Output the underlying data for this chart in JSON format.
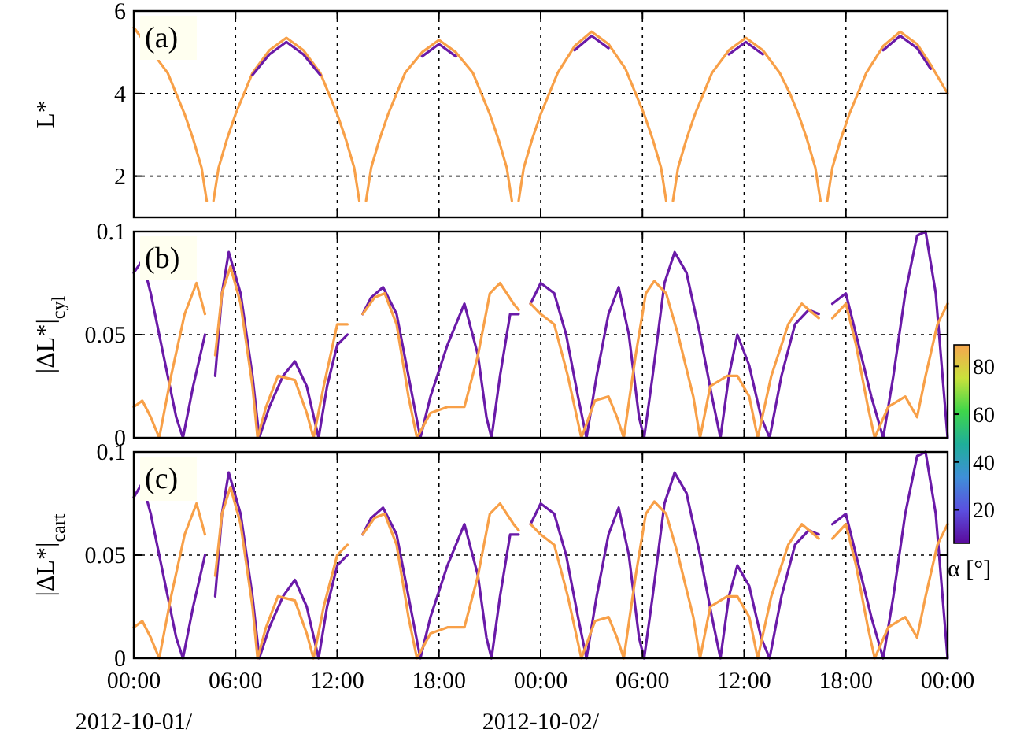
{
  "chart_data": [
    {
      "type": "line",
      "title": "(a)",
      "ylabel": "L*",
      "xlim": [
        "2012-10-01T00:00",
        "2012-10-03T00:00"
      ],
      "ylim": [
        1,
        6
      ],
      "yticks": [
        2,
        4,
        6
      ],
      "xticks": [
        {
          "value": "2012-10-01T00:00",
          "label": null
        },
        {
          "value": "2012-10-01T06:00",
          "label": null
        },
        {
          "value": "2012-10-01T12:00",
          "label": null
        },
        {
          "value": "2012-10-01T18:00",
          "label": null
        },
        {
          "value": "2012-10-02T00:00",
          "label": null
        },
        {
          "value": "2012-10-02T06:00",
          "label": null
        },
        {
          "value": "2012-10-02T12:00",
          "label": null
        },
        {
          "value": "2012-10-02T18:00",
          "label": null
        },
        {
          "value": "2012-10-03T00:00",
          "label": null
        }
      ],
      "grid": true,
      "tick_labels": "y",
      "series": [
        {
          "color": "#f8a048",
          "x": [
            "2012-10-01T00:00",
            "2012-10-01T02:00",
            "2012-10-01T02:30",
            "2012-10-01T03:00",
            "2012-10-01T03:30",
            "2012-10-01T04:00",
            "2012-10-01T04:18",
            "2012-10-01T04:30",
            "2012-10-01T04:42",
            "2012-10-01T05:00",
            "2012-10-01T05:30",
            "2012-10-01T06:00",
            "2012-10-01T06:30",
            "2012-10-01T07:00",
            "2012-10-01T08:00",
            "2012-10-01T09:00",
            "2012-10-01T10:00",
            "2012-10-01T11:00",
            "2012-10-01T11:30",
            "2012-10-01T12:00",
            "2012-10-01T12:30",
            "2012-10-01T13:00",
            "2012-10-01T13:18",
            "2012-10-01T13:30",
            "2012-10-01T13:42",
            "2012-10-01T14:00",
            "2012-10-01T14:30",
            "2012-10-01T15:00",
            "2012-10-01T15:30",
            "2012-10-01T16:00",
            "2012-10-01T17:00",
            "2012-10-01T18:00",
            "2012-10-01T19:00",
            "2012-10-01T20:00",
            "2012-10-01T20:30",
            "2012-10-01T21:00",
            "2012-10-01T21:30",
            "2012-10-01T22:00",
            "2012-10-01T22:18",
            "2012-10-01T22:30",
            "2012-10-01T22:42",
            "2012-10-01T23:00",
            "2012-10-01T23:30",
            "2012-10-02T00:00",
            "2012-10-02T00:30",
            "2012-10-02T01:00",
            "2012-10-02T02:00",
            "2012-10-02T03:00",
            "2012-10-02T04:00",
            "2012-10-02T05:00",
            "2012-10-02T05:36",
            "2012-10-02T06:06",
            "2012-10-02T06:36",
            "2012-10-02T07:06",
            "2012-10-02T07:24",
            "2012-10-02T07:36",
            "2012-10-02T07:48",
            "2012-10-02T08:06",
            "2012-10-02T08:36",
            "2012-10-02T09:06",
            "2012-10-02T09:36",
            "2012-10-02T10:06",
            "2012-10-02T11:06",
            "2012-10-02T12:06",
            "2012-10-02T13:06",
            "2012-10-02T14:06",
            "2012-10-02T14:42",
            "2012-10-02T15:12",
            "2012-10-02T15:42",
            "2012-10-02T16:12",
            "2012-10-02T16:30",
            "2012-10-02T16:42",
            "2012-10-02T16:54",
            "2012-10-02T17:12",
            "2012-10-02T17:42",
            "2012-10-02T18:12",
            "2012-10-02T18:42",
            "2012-10-02T19:12",
            "2012-10-02T20:12",
            "2012-10-02T21:12",
            "2012-10-02T22:12",
            "2012-10-02T23:00",
            "2012-10-03T00:00"
          ],
          "values": [
            5.6,
            4.5,
            4.0,
            3.5,
            2.9,
            2.2,
            1.4,
            null,
            1.4,
            2.2,
            2.9,
            3.5,
            4.0,
            4.5,
            5.05,
            5.35,
            5.05,
            4.5,
            4.0,
            3.5,
            2.9,
            2.2,
            1.4,
            null,
            1.4,
            2.2,
            2.9,
            3.5,
            4.0,
            4.5,
            5.0,
            5.3,
            5.0,
            4.5,
            4.0,
            3.5,
            2.9,
            2.2,
            1.4,
            null,
            1.4,
            2.2,
            2.9,
            3.5,
            4.0,
            4.5,
            5.15,
            5.5,
            5.2,
            4.6,
            4.0,
            3.5,
            2.9,
            2.2,
            1.4,
            null,
            1.4,
            2.2,
            2.9,
            3.5,
            4.0,
            4.5,
            5.05,
            5.35,
            5.05,
            4.5,
            4.0,
            3.5,
            2.9,
            2.2,
            1.4,
            null,
            1.4,
            2.2,
            2.9,
            3.5,
            4.0,
            4.5,
            5.15,
            5.5,
            5.2,
            4.7,
            4.0
          ]
        },
        {
          "color": "#6a1aa8",
          "x": [
            "2012-10-01T07:00",
            "2012-10-01T08:00",
            "2012-10-01T09:00",
            "2012-10-01T10:00",
            "2012-10-01T11:00",
            "2012-10-01T16:00",
            "2012-10-01T17:00",
            "2012-10-01T18:00",
            "2012-10-01T19:00",
            "2012-10-01T20:00",
            "2012-10-02T01:00",
            "2012-10-02T02:00",
            "2012-10-02T03:00",
            "2012-10-02T04:00",
            "2012-10-02T05:00",
            "2012-10-02T10:06",
            "2012-10-02T11:06",
            "2012-10-02T12:06",
            "2012-10-02T13:06",
            "2012-10-02T14:06",
            "2012-10-02T19:12",
            "2012-10-02T20:12",
            "2012-10-02T21:12",
            "2012-10-02T22:12",
            "2012-10-02T23:00"
          ],
          "values": [
            4.45,
            4.95,
            5.25,
            4.95,
            4.45,
            null,
            4.9,
            5.2,
            4.9,
            null,
            null,
            5.05,
            5.4,
            5.1,
            null,
            null,
            4.95,
            5.25,
            4.95,
            null,
            null,
            5.05,
            5.4,
            5.1,
            4.6
          ]
        }
      ]
    },
    {
      "type": "line",
      "title": "(b)",
      "ylabel": "|ΔL*|$_{cyl}$",
      "xlim": [
        "2012-10-01T00:00",
        "2012-10-03T00:00"
      ],
      "ylim": [
        0,
        0.1
      ],
      "yticks": [
        0,
        0.05,
        0.1
      ],
      "xticks": [
        {
          "value": "2012-10-01T00:00",
          "label": null
        },
        {
          "value": "2012-10-01T06:00",
          "label": null
        },
        {
          "value": "2012-10-01T12:00",
          "label": null
        },
        {
          "value": "2012-10-01T18:00",
          "label": null
        },
        {
          "value": "2012-10-02T00:00",
          "label": null
        },
        {
          "value": "2012-10-02T06:00",
          "label": null
        },
        {
          "value": "2012-10-02T12:00",
          "label": null
        },
        {
          "value": "2012-10-02T18:00",
          "label": null
        },
        {
          "value": "2012-10-03T00:00",
          "label": null
        }
      ],
      "grid": true,
      "tick_labels": "y",
      "clim": [
        6,
        89
      ],
      "cticks": [
        20,
        40,
        60,
        80
      ],
      "clabel": "α [°]",
      "series": [
        {
          "color": "#6a1aa8",
          "x": [
            "2012-10-01T00:00",
            "2012-10-01T00:30",
            "2012-10-01T01:00",
            "2012-10-01T01:30",
            "2012-10-01T02:00",
            "2012-10-01T02:30",
            "2012-10-01T02:54",
            "2012-10-01T03:30",
            "2012-10-01T04:12",
            "2012-10-01T04:30",
            "2012-10-01T04:48",
            "2012-10-01T05:12",
            "2012-10-01T05:36",
            "2012-10-01T06:18",
            "2012-10-01T07:00",
            "2012-10-01T07:24",
            "2012-10-01T08:00",
            "2012-10-01T08:48",
            "2012-10-01T09:30",
            "2012-10-01T10:12",
            "2012-10-01T10:54",
            "2012-10-01T11:24",
            "2012-10-01T12:00",
            "2012-10-01T12:36",
            "2012-10-01T13:00",
            "2012-10-01T13:30",
            "2012-10-01T14:00",
            "2012-10-01T14:42",
            "2012-10-01T15:30",
            "2012-10-01T16:12",
            "2012-10-01T16:54",
            "2012-10-01T17:30",
            "2012-10-01T18:30",
            "2012-10-01T19:30",
            "2012-10-01T20:18",
            "2012-10-01T20:48",
            "2012-10-01T21:06",
            "2012-10-01T21:36",
            "2012-10-01T22:12",
            "2012-10-01T22:42",
            "2012-10-01T23:00",
            "2012-10-01T23:24",
            "2012-10-02T00:00",
            "2012-10-02T00:48",
            "2012-10-02T01:30",
            "2012-10-02T02:12",
            "2012-10-02T02:42",
            "2012-10-02T03:18",
            "2012-10-02T04:00",
            "2012-10-02T04:36",
            "2012-10-02T05:12",
            "2012-10-02T05:48",
            "2012-10-02T06:06",
            "2012-10-02T06:36",
            "2012-10-02T07:18",
            "2012-10-02T07:54",
            "2012-10-02T08:36",
            "2012-10-02T09:24",
            "2012-10-02T10:06",
            "2012-10-02T10:36",
            "2012-10-02T11:06",
            "2012-10-02T11:36",
            "2012-10-02T12:18",
            "2012-10-02T13:00",
            "2012-10-02T13:30",
            "2012-10-02T14:12",
            "2012-10-02T15:00",
            "2012-10-02T15:48",
            "2012-10-02T16:24",
            "2012-10-02T16:42",
            "2012-10-02T17:12",
            "2012-10-02T18:00",
            "2012-10-02T18:36",
            "2012-10-02T19:30",
            "2012-10-02T20:12",
            "2012-10-02T20:48",
            "2012-10-02T21:30",
            "2012-10-02T22:12",
            "2012-10-02T22:42",
            "2012-10-02T23:18",
            "2012-10-02T23:48",
            "2012-10-03T00:00"
          ],
          "values": [
            0.08,
            0.086,
            0.07,
            0.05,
            0.03,
            0.01,
            0,
            0.025,
            0.05,
            null,
            0.03,
            0.07,
            0.09,
            0.07,
            0.03,
            0,
            0.015,
            0.03,
            0.037,
            0.025,
            0,
            0.025,
            0.045,
            0.05,
            null,
            0.06,
            0.068,
            0.073,
            0.06,
            0.03,
            0,
            0.02,
            0.045,
            0.065,
            0.04,
            0.01,
            0,
            0.03,
            0.06,
            0.06,
            null,
            0.065,
            0.075,
            0.07,
            0.05,
            0.02,
            0,
            0.03,
            0.06,
            0.073,
            0.05,
            0.01,
            0,
            0.03,
            0.075,
            0.09,
            0.08,
            0.05,
            0.02,
            0,
            0.03,
            0.05,
            0.035,
            0.01,
            0,
            0.03,
            0.055,
            0.062,
            0.06,
            null,
            0.065,
            0.07,
            0.05,
            0.02,
            0,
            0.03,
            0.07,
            0.098,
            0.1,
            0.07,
            0.02,
            0
          ]
        },
        {
          "color": "#f8a048",
          "x": [
            "2012-10-01T00:00",
            "2012-10-01T00:30",
            "2012-10-01T01:00",
            "2012-10-01T01:30",
            "2012-10-01T02:12",
            "2012-10-01T03:00",
            "2012-10-01T03:42",
            "2012-10-01T04:12",
            "2012-10-01T04:30",
            "2012-10-01T04:48",
            "2012-10-01T05:12",
            "2012-10-01T05:42",
            "2012-10-01T06:18",
            "2012-10-01T07:00",
            "2012-10-01T07:18",
            "2012-10-01T07:48",
            "2012-10-01T08:30",
            "2012-10-01T09:30",
            "2012-10-01T10:12",
            "2012-10-01T10:36",
            "2012-10-01T11:12",
            "2012-10-01T12:00",
            "2012-10-01T12:36",
            "2012-10-01T13:00",
            "2012-10-01T13:30",
            "2012-10-01T14:12",
            "2012-10-01T14:48",
            "2012-10-01T15:30",
            "2012-10-01T16:12",
            "2012-10-01T16:42",
            "2012-10-01T17:30",
            "2012-10-01T18:30",
            "2012-10-01T19:30",
            "2012-10-01T20:18",
            "2012-10-01T21:00",
            "2012-10-01T21:36",
            "2012-10-01T22:24",
            "2012-10-01T22:42",
            "2012-10-01T23:00",
            "2012-10-01T23:24",
            "2012-10-02T00:00",
            "2012-10-02T00:48",
            "2012-10-02T01:36",
            "2012-10-02T02:24",
            "2012-10-02T03:12",
            "2012-10-02T04:00",
            "2012-10-02T04:30",
            "2012-10-02T04:54",
            "2012-10-02T05:36",
            "2012-10-02T06:12",
            "2012-10-02T06:42",
            "2012-10-02T07:24",
            "2012-10-02T08:06",
            "2012-10-02T09:00",
            "2012-10-02T09:24",
            "2012-10-02T10:00",
            "2012-10-02T11:00",
            "2012-10-02T11:36",
            "2012-10-02T12:18",
            "2012-10-02T12:48",
            "2012-10-02T13:36",
            "2012-10-02T14:36",
            "2012-10-02T15:24",
            "2012-10-02T16:24",
            "2012-10-02T16:42",
            "2012-10-02T17:12",
            "2012-10-02T18:00",
            "2012-10-02T18:36",
            "2012-10-02T19:18",
            "2012-10-02T19:42",
            "2012-10-02T20:30",
            "2012-10-02T21:30",
            "2012-10-02T22:12",
            "2012-10-02T22:42",
            "2012-10-02T23:24",
            "2012-10-03T00:00"
          ],
          "values": [
            0.015,
            0.018,
            0.01,
            0,
            0.03,
            0.06,
            0.075,
            0.06,
            null,
            0.04,
            0.07,
            0.083,
            0.065,
            0.025,
            0,
            0.015,
            0.03,
            0.028,
            0.012,
            0,
            0.025,
            0.055,
            0.055,
            null,
            0.06,
            0.068,
            0.07,
            0.055,
            0.02,
            0,
            0.012,
            0.015,
            0.015,
            0.04,
            0.07,
            0.075,
            0.065,
            0.062,
            null,
            0.065,
            0.06,
            0.055,
            0.03,
            0,
            0.018,
            0.02,
            0.01,
            0,
            0.04,
            0.07,
            0.076,
            0.07,
            0.05,
            0.02,
            0,
            0.025,
            0.03,
            0.03,
            0.02,
            0,
            0.03,
            0.055,
            0.065,
            0.058,
            null,
            0.058,
            0.065,
            0.045,
            0.015,
            0,
            0.015,
            0.02,
            0.01,
            0.03,
            0.055,
            0.065
          ]
        }
      ]
    },
    {
      "type": "line",
      "title": "(c)",
      "ylabel": "|ΔL*|$_{cart}$",
      "xlim": [
        "2012-10-01T00:00",
        "2012-10-03T00:00"
      ],
      "ylim": [
        0,
        0.1
      ],
      "yticks": [
        0,
        0.05,
        0.1
      ],
      "xticks": [
        {
          "value": "2012-10-01T00:00",
          "label": "00:00\n2012-10-01/"
        },
        {
          "value": "2012-10-01T06:00",
          "label": "06:00"
        },
        {
          "value": "2012-10-01T12:00",
          "label": "12:00"
        },
        {
          "value": "2012-10-01T18:00",
          "label": "18:00"
        },
        {
          "value": "2012-10-02T00:00",
          "label": "00:00\n2012-10-02/"
        },
        {
          "value": "2012-10-02T06:00",
          "label": "06:00"
        },
        {
          "value": "2012-10-02T12:00",
          "label": "12:00"
        },
        {
          "value": "2012-10-02T18:00",
          "label": "18:00"
        },
        {
          "value": "2012-10-03T00:00",
          "label": "00:00"
        }
      ],
      "grid": true,
      "series": [
        {
          "color": "#6a1aa8",
          "x": [
            "2012-10-01T00:00",
            "2012-10-01T00:30",
            "2012-10-01T01:00",
            "2012-10-01T01:30",
            "2012-10-01T02:00",
            "2012-10-01T02:30",
            "2012-10-01T02:54",
            "2012-10-01T03:30",
            "2012-10-01T04:12",
            "2012-10-01T04:30",
            "2012-10-01T04:48",
            "2012-10-01T05:12",
            "2012-10-01T05:36",
            "2012-10-01T06:18",
            "2012-10-01T07:00",
            "2012-10-01T07:24",
            "2012-10-01T08:00",
            "2012-10-01T08:48",
            "2012-10-01T09:30",
            "2012-10-01T10:12",
            "2012-10-01T10:54",
            "2012-10-01T11:24",
            "2012-10-01T12:00",
            "2012-10-01T12:36",
            "2012-10-01T13:00",
            "2012-10-01T13:30",
            "2012-10-01T14:00",
            "2012-10-01T14:42",
            "2012-10-01T15:30",
            "2012-10-01T16:12",
            "2012-10-01T16:54",
            "2012-10-01T17:30",
            "2012-10-01T18:30",
            "2012-10-01T19:30",
            "2012-10-01T20:18",
            "2012-10-01T20:48",
            "2012-10-01T21:06",
            "2012-10-01T21:36",
            "2012-10-01T22:12",
            "2012-10-01T22:42",
            "2012-10-01T23:00",
            "2012-10-01T23:24",
            "2012-10-02T00:00",
            "2012-10-02T00:48",
            "2012-10-02T01:30",
            "2012-10-02T02:12",
            "2012-10-02T02:42",
            "2012-10-02T03:18",
            "2012-10-02T04:00",
            "2012-10-02T04:36",
            "2012-10-02T05:12",
            "2012-10-02T05:48",
            "2012-10-02T06:06",
            "2012-10-02T06:36",
            "2012-10-02T07:18",
            "2012-10-02T07:54",
            "2012-10-02T08:36",
            "2012-10-02T09:24",
            "2012-10-02T10:06",
            "2012-10-02T10:36",
            "2012-10-02T11:06",
            "2012-10-02T11:36",
            "2012-10-02T12:18",
            "2012-10-02T13:00",
            "2012-10-02T13:30",
            "2012-10-02T14:12",
            "2012-10-02T15:00",
            "2012-10-02T15:48",
            "2012-10-02T16:24",
            "2012-10-02T16:42",
            "2012-10-02T17:12",
            "2012-10-02T18:00",
            "2012-10-02T18:36",
            "2012-10-02T19:30",
            "2012-10-02T20:12",
            "2012-10-02T20:48",
            "2012-10-02T21:30",
            "2012-10-02T22:12",
            "2012-10-02T22:42",
            "2012-10-02T23:18",
            "2012-10-02T23:48",
            "2012-10-03T00:00"
          ],
          "values": [
            0.078,
            0.085,
            0.07,
            0.05,
            0.03,
            0.01,
            0,
            0.025,
            0.05,
            null,
            0.03,
            0.07,
            0.09,
            0.07,
            0.03,
            0,
            0.015,
            0.03,
            0.038,
            0.025,
            0,
            0.025,
            0.045,
            0.05,
            null,
            0.06,
            0.068,
            0.073,
            0.06,
            0.03,
            0,
            0.02,
            0.045,
            0.065,
            0.04,
            0.01,
            0,
            0.03,
            0.06,
            0.06,
            null,
            0.065,
            0.075,
            0.07,
            0.05,
            0.02,
            0,
            0.03,
            0.06,
            0.073,
            0.05,
            0.01,
            0,
            0.03,
            0.075,
            0.09,
            0.08,
            0.05,
            0.02,
            0,
            0.03,
            0.045,
            0.035,
            0.01,
            0,
            0.03,
            0.055,
            0.062,
            0.06,
            null,
            0.065,
            0.07,
            0.05,
            0.02,
            0,
            0.03,
            0.07,
            0.098,
            0.1,
            0.07,
            0.02,
            0
          ]
        },
        {
          "color": "#f8a048",
          "x": [
            "2012-10-01T00:00",
            "2012-10-01T00:30",
            "2012-10-01T01:00",
            "2012-10-01T01:30",
            "2012-10-01T02:12",
            "2012-10-01T03:00",
            "2012-10-01T03:42",
            "2012-10-01T04:12",
            "2012-10-01T04:30",
            "2012-10-01T04:48",
            "2012-10-01T05:12",
            "2012-10-01T05:42",
            "2012-10-01T06:18",
            "2012-10-01T07:00",
            "2012-10-01T07:18",
            "2012-10-01T07:48",
            "2012-10-01T08:30",
            "2012-10-01T09:30",
            "2012-10-01T10:12",
            "2012-10-01T10:36",
            "2012-10-01T11:12",
            "2012-10-01T12:00",
            "2012-10-01T12:36",
            "2012-10-01T13:00",
            "2012-10-01T13:30",
            "2012-10-01T14:12",
            "2012-10-01T14:48",
            "2012-10-01T15:30",
            "2012-10-01T16:12",
            "2012-10-01T16:42",
            "2012-10-01T17:30",
            "2012-10-01T18:30",
            "2012-10-01T19:30",
            "2012-10-01T20:18",
            "2012-10-01T21:00",
            "2012-10-01T21:36",
            "2012-10-01T22:24",
            "2012-10-01T22:42",
            "2012-10-01T23:00",
            "2012-10-01T23:24",
            "2012-10-02T00:00",
            "2012-10-02T00:48",
            "2012-10-02T01:36",
            "2012-10-02T02:24",
            "2012-10-02T03:12",
            "2012-10-02T04:00",
            "2012-10-02T04:30",
            "2012-10-02T04:54",
            "2012-10-02T05:36",
            "2012-10-02T06:12",
            "2012-10-02T06:42",
            "2012-10-02T07:24",
            "2012-10-02T08:06",
            "2012-10-02T09:00",
            "2012-10-02T09:24",
            "2012-10-02T10:00",
            "2012-10-02T11:00",
            "2012-10-02T11:36",
            "2012-10-02T12:18",
            "2012-10-02T12:48",
            "2012-10-02T13:36",
            "2012-10-02T14:36",
            "2012-10-02T15:24",
            "2012-10-02T16:24",
            "2012-10-02T16:42",
            "2012-10-02T17:12",
            "2012-10-02T18:00",
            "2012-10-02T18:36",
            "2012-10-02T19:18",
            "2012-10-02T19:42",
            "2012-10-02T20:30",
            "2012-10-02T21:30",
            "2012-10-02T22:12",
            "2012-10-02T22:42",
            "2012-10-02T23:24",
            "2012-10-03T00:00"
          ],
          "values": [
            0.015,
            0.018,
            0.01,
            0,
            0.03,
            0.06,
            0.075,
            0.06,
            null,
            0.04,
            0.07,
            0.083,
            0.065,
            0.025,
            0,
            0.015,
            0.03,
            0.028,
            0.012,
            0,
            0.025,
            0.05,
            0.055,
            null,
            0.06,
            0.068,
            0.07,
            0.055,
            0.02,
            0,
            0.012,
            0.015,
            0.015,
            0.04,
            0.07,
            0.075,
            0.065,
            0.062,
            null,
            0.065,
            0.06,
            0.055,
            0.03,
            0,
            0.018,
            0.02,
            0.01,
            0,
            0.04,
            0.07,
            0.076,
            0.07,
            0.05,
            0.02,
            0,
            0.025,
            0.03,
            0.03,
            0.02,
            0,
            0.03,
            0.055,
            0.065,
            0.058,
            null,
            0.058,
            0.065,
            0.045,
            0.015,
            0,
            0.015,
            0.02,
            0.01,
            0.03,
            0.055,
            0.065
          ]
        }
      ]
    }
  ]
}
